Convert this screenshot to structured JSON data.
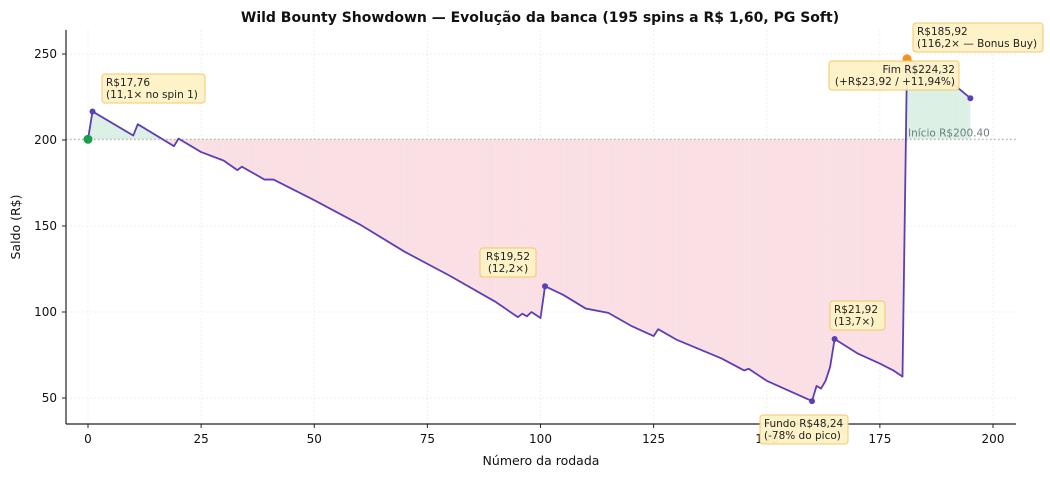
{
  "chart_data": {
    "type": "line",
    "title": "Wild Bounty Showdown — Evolução da banca (195 spins a R$ 1,60, PG Soft)",
    "xlabel": "Número da rodada",
    "ylabel": "Saldo (R$)",
    "xlim": [
      -4,
      205
    ],
    "ylim": [
      35,
      265
    ],
    "xticks": [
      0,
      25,
      50,
      75,
      100,
      125,
      150,
      175,
      200
    ],
    "yticks": [
      50,
      100,
      150,
      200,
      250
    ],
    "grid": true,
    "reference_line": {
      "y": 200.4,
      "label": "Início R$200.40"
    },
    "series": [
      {
        "name": "Saldo",
        "color": "#5b3fb5",
        "points": [
          [
            0,
            200.4
          ],
          [
            1,
            216.6
          ],
          [
            10,
            202.6
          ],
          [
            11,
            209.2
          ],
          [
            19,
            196.4
          ],
          [
            20,
            200.8
          ],
          [
            25,
            193
          ],
          [
            30,
            188
          ],
          [
            33,
            182.5
          ],
          [
            34,
            184.5
          ],
          [
            37,
            180
          ],
          [
            39,
            177
          ],
          [
            41,
            177
          ],
          [
            50,
            165
          ],
          [
            60,
            151
          ],
          [
            70,
            135
          ],
          [
            80,
            121
          ],
          [
            90,
            106
          ],
          [
            95,
            97
          ],
          [
            96,
            99
          ],
          [
            97,
            97.5
          ],
          [
            98,
            100
          ],
          [
            100,
            96.5
          ],
          [
            101,
            115
          ],
          [
            105,
            110
          ],
          [
            110,
            102
          ],
          [
            115,
            99.5
          ],
          [
            120,
            92
          ],
          [
            125,
            86
          ],
          [
            126,
            90
          ],
          [
            130,
            84
          ],
          [
            140,
            73
          ],
          [
            145,
            66
          ],
          [
            146,
            67
          ],
          [
            150,
            60
          ],
          [
            160,
            48.2
          ],
          [
            161,
            57
          ],
          [
            162,
            55.5
          ],
          [
            163,
            60
          ],
          [
            164,
            68
          ],
          [
            165,
            84.3
          ],
          [
            170,
            76
          ],
          [
            175,
            70
          ],
          [
            178,
            66
          ],
          [
            180,
            62.4
          ],
          [
            181,
            247.2
          ],
          [
            191,
            233
          ],
          [
            195,
            224.3
          ]
        ]
      }
    ],
    "markers": [
      {
        "name": "start",
        "x": 0,
        "y": 200.4,
        "color": "#1a9e4a"
      },
      {
        "name": "bonus-buy-peak",
        "x": 181,
        "y": 247.2,
        "color": "#f0961e"
      },
      {
        "name": "win-1",
        "x": 1,
        "y": 216.6,
        "color": "#5b3fb5"
      },
      {
        "name": "win-101",
        "x": 101,
        "y": 115,
        "color": "#5b3fb5"
      },
      {
        "name": "bottom",
        "x": 160,
        "y": 48.2,
        "color": "#5b3fb5"
      },
      {
        "name": "win-165",
        "x": 165,
        "y": 84.3,
        "color": "#5b3fb5"
      },
      {
        "name": "end",
        "x": 195,
        "y": 224.3,
        "color": "#5b3fb5"
      }
    ],
    "annotations": [
      {
        "id": "win1",
        "lines": [
          "R$17,76",
          "(11,1× no spin 1)"
        ]
      },
      {
        "id": "win101",
        "lines": [
          "R$19,52",
          "(12,2×)"
        ]
      },
      {
        "id": "win165",
        "lines": [
          "R$21,92",
          "(13,7×)"
        ]
      },
      {
        "id": "bottom",
        "lines": [
          "Fundo R$48,24",
          "(-78% do pico)"
        ]
      },
      {
        "id": "bonus",
        "lines": [
          "R$185,92",
          "(116,2× — Bonus Buy)"
        ]
      },
      {
        "id": "end",
        "lines": [
          "Fim R$224,32",
          "(+R$23,92 / +11,94%)"
        ]
      }
    ],
    "colors": {
      "line": "#5b3fb5",
      "gain_fill": "#d8eee2",
      "loss_fill": "#f9dde2",
      "annotation_bg": "#fdf2c6",
      "annotation_border": "#f2c766"
    }
  }
}
